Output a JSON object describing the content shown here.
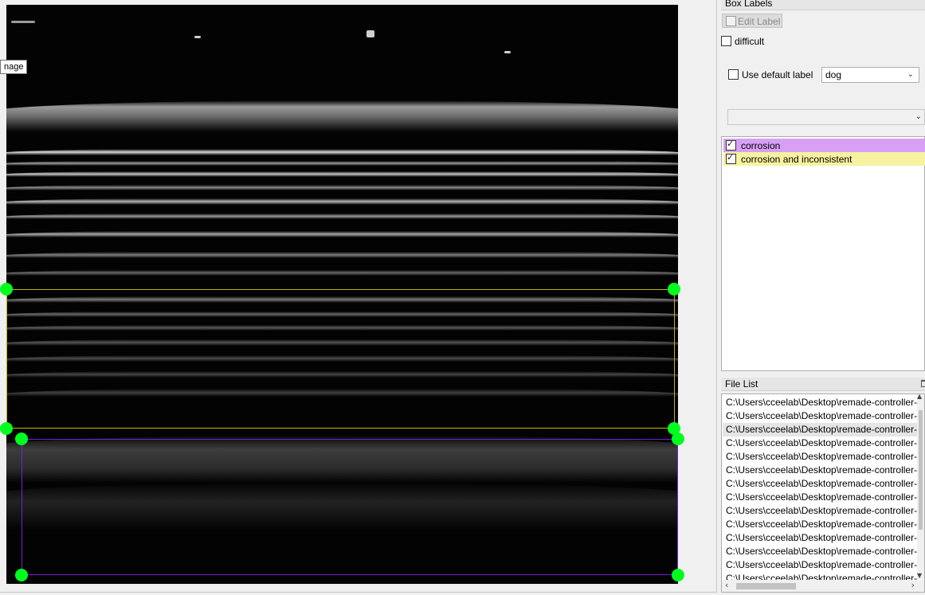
{
  "canvas": {
    "tooltip": "nage"
  },
  "box_labels_panel": {
    "title": "Box Labels",
    "edit_label_button": "Edit Label",
    "difficult_label": "difficult",
    "difficult_checked": false,
    "use_default_label": "Use default label",
    "use_default_checked": false,
    "default_label_value": "dog",
    "label_filter_value": "",
    "labels": [
      {
        "text": "corrosion",
        "checked": true,
        "color": "#d8a0f5"
      },
      {
        "text": "corrosion and inconsistent",
        "checked": true,
        "color": "#f7f2a0"
      }
    ]
  },
  "file_list_panel": {
    "title": "File List",
    "selected_index": 2,
    "files": [
      "C:\\Users\\cceelab\\Desktop\\remade-controller-",
      "C:\\Users\\cceelab\\Desktop\\remade-controller-",
      "C:\\Users\\cceelab\\Desktop\\remade-controller-",
      "C:\\Users\\cceelab\\Desktop\\remade-controller-",
      "C:\\Users\\cceelab\\Desktop\\remade-controller-",
      "C:\\Users\\cceelab\\Desktop\\remade-controller-",
      "C:\\Users\\cceelab\\Desktop\\remade-controller-",
      "C:\\Users\\cceelab\\Desktop\\remade-controller-",
      "C:\\Users\\cceelab\\Desktop\\remade-controller-",
      "C:\\Users\\cceelab\\Desktop\\remade-controller-",
      "C:\\Users\\cceelab\\Desktop\\remade-controller-",
      "C:\\Users\\cceelab\\Desktop\\remade-controller-",
      "C:\\Users\\cceelab\\Desktop\\remade-controller-",
      "C:\\Users\\cceelab\\Desktop\\remade-controller-"
    ]
  },
  "colors": {
    "box_yellow": "#c5b300",
    "box_purple": "#7a1fd6",
    "handle": "#00ff1e"
  }
}
